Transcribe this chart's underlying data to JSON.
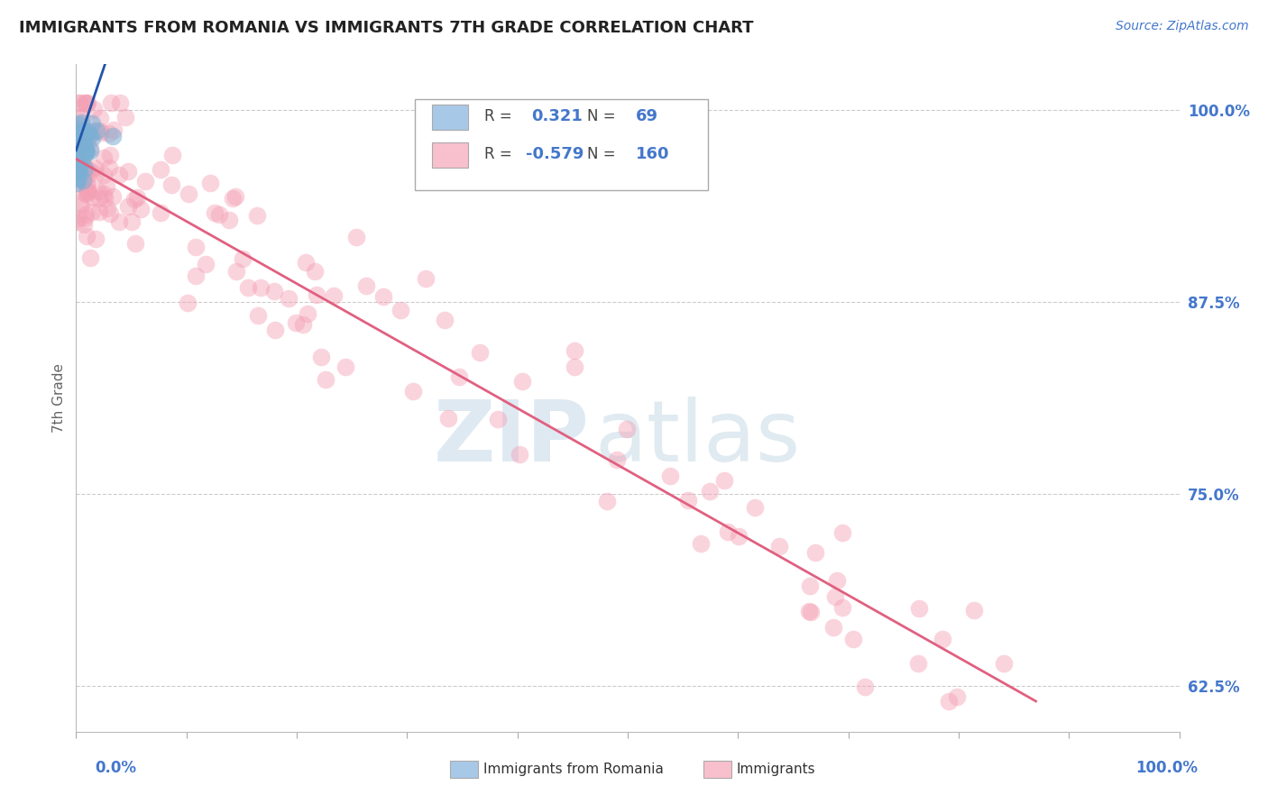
{
  "title": "IMMIGRANTS FROM ROMANIA VS IMMIGRANTS 7TH GRADE CORRELATION CHART",
  "source_text": "Source: ZipAtlas.com",
  "ylabel": "7th Grade",
  "y_tick_labels": [
    "62.5%",
    "75.0%",
    "87.5%",
    "100.0%"
  ],
  "y_tick_values": [
    0.625,
    0.75,
    0.875,
    1.0
  ],
  "blue_scatter_color": "#7bafd4",
  "pink_scatter_color": "#f4a0b5",
  "blue_line_color": "#2255aa",
  "pink_line_color": "#e06080",
  "blue_legend_color": "#a8c8e8",
  "pink_legend_color": "#f8c0cc",
  "watermark_zip_color": "#c5d8e8",
  "watermark_atlas_color": "#b0c8dc",
  "background_color": "#ffffff",
  "grid_color": "#cccccc",
  "title_color": "#222222",
  "axis_label_color": "#4477cc",
  "xlim": [
    0.0,
    1.0
  ],
  "ylim": [
    0.595,
    1.03
  ],
  "legend_R1": "0.321",
  "legend_N1": "69",
  "legend_R2": "-0.579",
  "legend_N2": "160",
  "legend_label1": "Immigrants from Romania",
  "legend_label2": "Immigrants"
}
